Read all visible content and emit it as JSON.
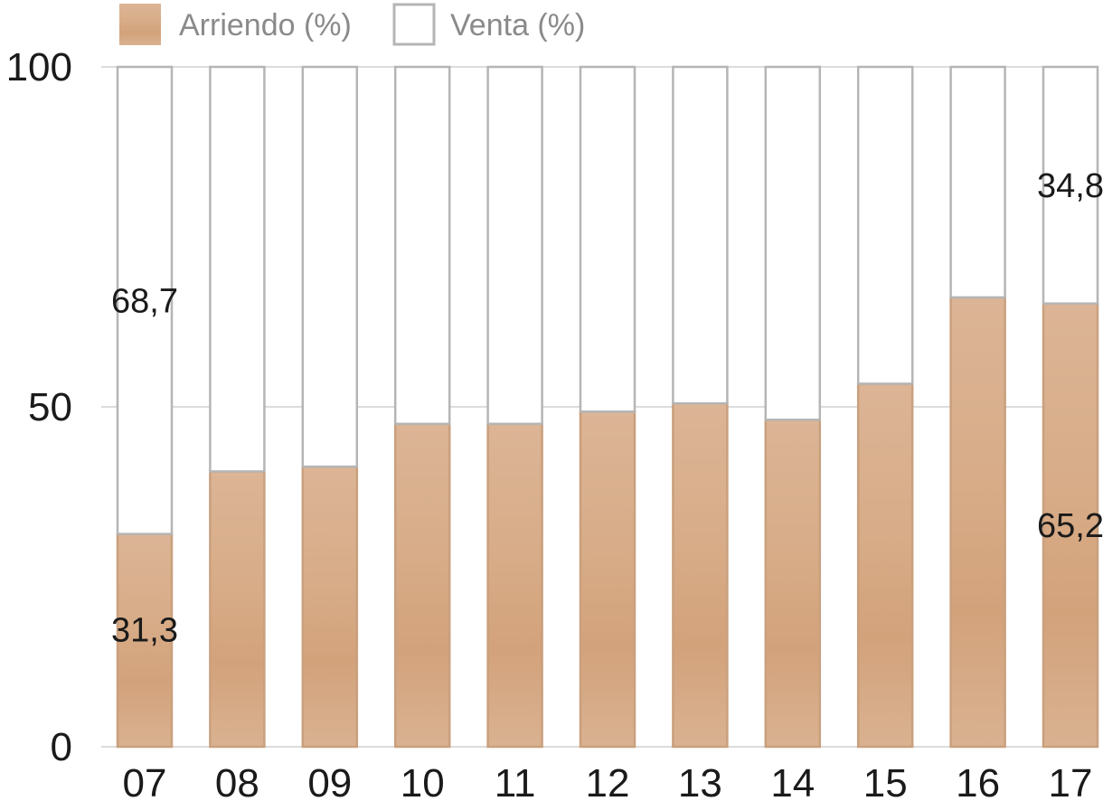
{
  "chart_data": {
    "type": "bar",
    "stacked": true,
    "categories": [
      "07",
      "08",
      "09",
      "10",
      "11",
      "12",
      "13",
      "14",
      "15",
      "16",
      "17"
    ],
    "series": [
      {
        "name": "Arriendo (%)",
        "values": [
          31.3,
          40.5,
          41.2,
          47.5,
          47.5,
          49.3,
          50.5,
          48.1,
          53.4,
          66.1,
          65.2
        ],
        "color": "#d8ae8a"
      },
      {
        "name": "Venta (%)",
        "values": [
          68.7,
          59.5,
          58.8,
          52.5,
          52.5,
          50.7,
          49.5,
          51.9,
          46.6,
          33.9,
          34.8
        ],
        "color": "#ffffff"
      }
    ],
    "ylim": [
      0,
      100
    ],
    "yticks": [
      "0",
      "50",
      "100"
    ],
    "data_labels": [
      {
        "text": "31,3",
        "series": 0,
        "category": "07"
      },
      {
        "text": "68,7",
        "series": 1,
        "category": "07"
      },
      {
        "text": "65,2",
        "series": 0,
        "category": "17"
      },
      {
        "text": "34,8",
        "series": 1,
        "category": "17"
      }
    ],
    "grid": "horizontal",
    "legend": "top-left",
    "title": "",
    "xlabel": "",
    "ylabel": ""
  }
}
